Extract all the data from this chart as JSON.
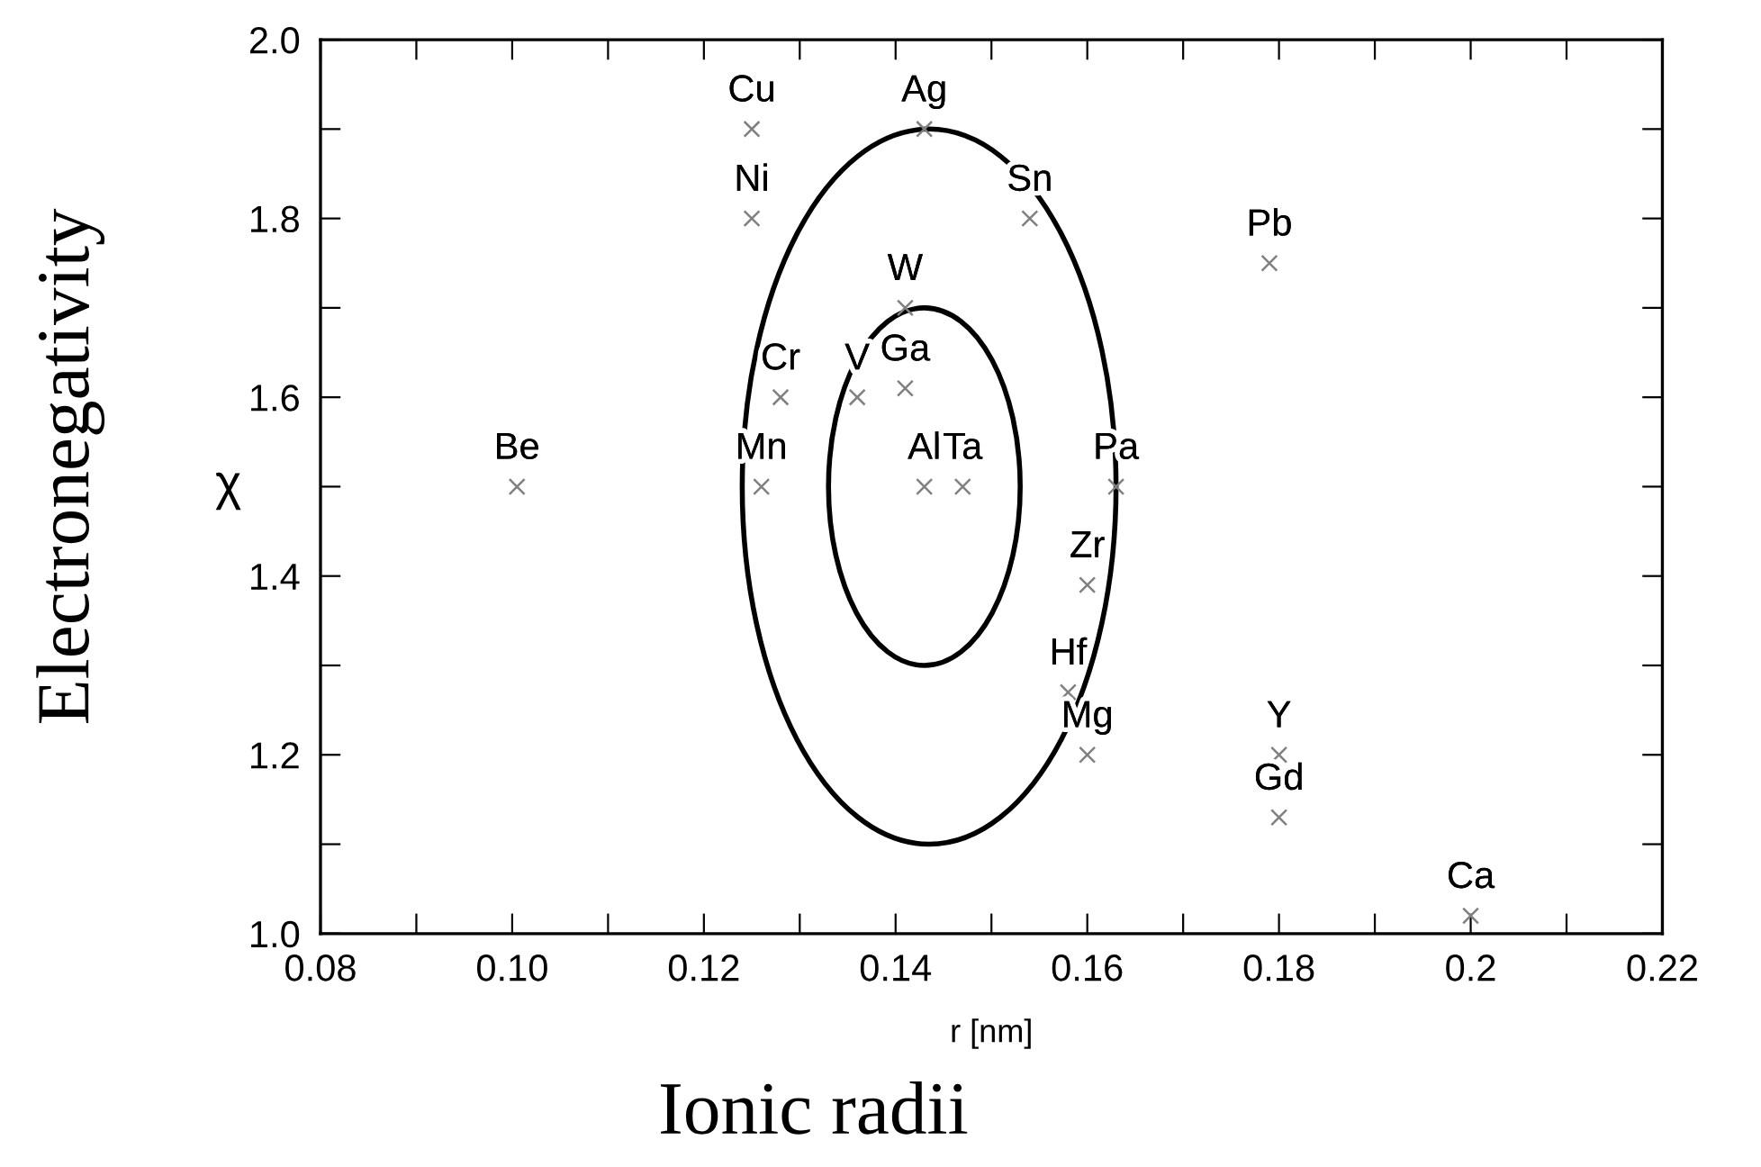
{
  "chart_data": {
    "type": "scatter",
    "xlabel": "r [nm]",
    "ylabel": "χ",
    "marker": "cross",
    "grid": false,
    "legend": false,
    "x": [
      0.125,
      0.125,
      0.143,
      0.154,
      0.179,
      0.141,
      0.128,
      0.136,
      0.141,
      0.126,
      0.143,
      0.147,
      0.163,
      0.1005,
      0.16,
      0.158,
      0.16,
      0.18,
      0.18,
      0.2
    ],
    "series": [
      {
        "color": "#808080",
        "values": [
          1.9,
          1.8,
          1.9,
          1.8,
          1.75,
          1.7,
          1.6,
          1.6,
          1.61,
          1.5,
          1.5,
          1.5,
          1.5,
          1.5,
          1.39,
          1.27,
          1.2,
          1.2,
          1.13,
          1.02
        ]
      }
    ],
    "xlim": [
      0.08,
      0.22
    ],
    "xticks": [
      {
        "value": 0.08,
        "label": "0.08"
      },
      {
        "value": 0.09,
        "label": null
      },
      {
        "value": 0.1,
        "label": "0.10"
      },
      {
        "value": 0.11,
        "label": null
      },
      {
        "value": 0.12,
        "label": "0.12"
      },
      {
        "value": 0.13,
        "label": null
      },
      {
        "value": 0.14,
        "label": "0.14"
      },
      {
        "value": 0.15,
        "label": null
      },
      {
        "value": 0.16,
        "label": "0.16"
      },
      {
        "value": 0.17,
        "label": null
      },
      {
        "value": 0.18,
        "label": "0.18"
      },
      {
        "value": 0.19,
        "label": null
      },
      {
        "value": 0.2,
        "label": "0.2"
      },
      {
        "value": 0.21,
        "label": null
      },
      {
        "value": 0.22,
        "label": "0.22"
      }
    ],
    "ylim": [
      1.0,
      2.0
    ],
    "yticks": [
      {
        "value": 1.0,
        "label": "1.0"
      },
      {
        "value": 1.1,
        "label": null
      },
      1.2,
      {
        "value": 1.3,
        "label": null
      },
      1.4,
      {
        "value": 1.5,
        "label": null
      },
      1.6,
      {
        "value": 1.7,
        "label": null
      },
      1.8,
      {
        "value": 1.9,
        "label": null
      },
      {
        "value": 2.0,
        "label": "2.0"
      }
    ],
    "annotations": [
      {
        "text": "Cu",
        "x": 0.125,
        "y": 1.9
      },
      {
        "text": "Ni",
        "x": 0.125,
        "y": 1.8
      },
      {
        "text": "Ag",
        "x": 0.143,
        "y": 1.9
      },
      {
        "text": "Sn",
        "x": 0.154,
        "y": 1.8
      },
      {
        "text": "Pb",
        "x": 0.179,
        "y": 1.75
      },
      {
        "text": "W",
        "x": 0.141,
        "y": 1.7
      },
      {
        "text": "Cr",
        "x": 0.128,
        "y": 1.6
      },
      {
        "text": "V",
        "x": 0.136,
        "y": 1.6
      },
      {
        "text": "Ga",
        "x": 0.141,
        "y": 1.61
      },
      {
        "text": "Mn",
        "x": 0.126,
        "y": 1.5
      },
      {
        "text": "Al",
        "x": 0.143,
        "y": 1.5
      },
      {
        "text": "Ta",
        "x": 0.147,
        "y": 1.5
      },
      {
        "text": "Pa",
        "x": 0.163,
        "y": 1.5
      },
      {
        "text": "Be",
        "x": 0.1005,
        "y": 1.5
      },
      {
        "text": "Zr",
        "x": 0.16,
        "y": 1.39
      },
      {
        "text": "Hf",
        "x": 0.158,
        "y": 1.27
      },
      {
        "text": "Mg",
        "x": 0.16,
        "y": 1.2
      },
      {
        "text": "Y",
        "x": 0.18,
        "y": 1.2
      },
      {
        "text": "Gd",
        "x": 0.18,
        "y": 1.13
      },
      {
        "text": "Ca",
        "x": 0.2,
        "y": 1.02
      },
      "Electronegativity",
      "Ionic radii"
    ]
  }
}
